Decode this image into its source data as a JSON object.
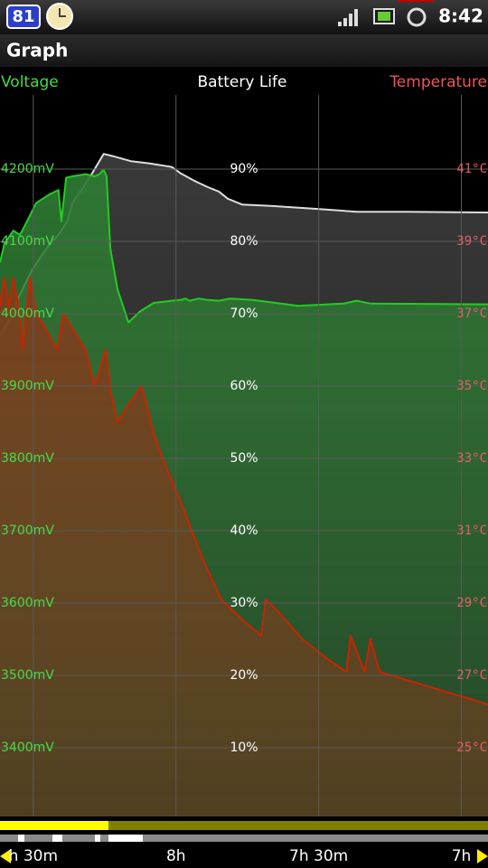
{
  "status_bar": {
    "battery_badge": "81",
    "time": "8:42"
  },
  "title_bar": {
    "title": "Graph"
  },
  "legend": {
    "left": "Voltage",
    "center": "Battery Life",
    "right": "Temperature"
  },
  "chart_data": {
    "type": "area",
    "xlim": [
      517,
      414.4
    ],
    "xticks": [
      {
        "value": 510,
        "label": "h 30m"
      },
      {
        "value": 480,
        "label": "8h"
      },
      {
        "value": 450,
        "label": "7h 30m"
      },
      {
        "value": 420,
        "label": "7h"
      }
    ],
    "ylim": [
      3305,
      4302.5
    ],
    "yticks": [
      {
        "value": 4200,
        "label": "4200mV"
      },
      {
        "value": 4100,
        "label": "4100mV"
      },
      {
        "value": 4000,
        "label": "4000mV"
      },
      {
        "value": 3900,
        "label": "3900mV"
      },
      {
        "value": 3800,
        "label": "3800mV"
      },
      {
        "value": 3700,
        "label": "3700mV"
      },
      {
        "value": 3600,
        "label": "3600mV"
      },
      {
        "value": 3500,
        "label": "3500mV"
      },
      {
        "value": 3400,
        "label": "3400mV"
      }
    ],
    "y2lim": [
      0.5,
      100.25
    ],
    "y2ticks": [
      {
        "value": 90,
        "label": "90%"
      },
      {
        "value": 80,
        "label": "80%"
      },
      {
        "value": 70,
        "label": "70%"
      },
      {
        "value": 60,
        "label": "60%"
      },
      {
        "value": 50,
        "label": "50%"
      },
      {
        "value": 40,
        "label": "40%"
      },
      {
        "value": 30,
        "label": "30%"
      },
      {
        "value": 20,
        "label": "20%"
      },
      {
        "value": 10,
        "label": "10%"
      }
    ],
    "y3lim": [
      23.1,
      43.05
    ],
    "y3ticks": [
      {
        "value": 41,
        "label": "41°C"
      },
      {
        "value": 39,
        "label": "39°C"
      },
      {
        "value": 37,
        "label": "37°C"
      },
      {
        "value": 35,
        "label": "35°C"
      },
      {
        "value": 33,
        "label": "33°C"
      },
      {
        "value": 31,
        "label": "31°C"
      },
      {
        "value": 29,
        "label": "29°C"
      },
      {
        "value": 27,
        "label": "27°C"
      },
      {
        "value": 25,
        "label": "25°C"
      }
    ],
    "grid": true,
    "series": [
      {
        "name": "Battery Life",
        "axis": "y2",
        "color": "#dddddd",
        "fill": "#3c3c3c",
        "x": [
          517.0,
          515.1,
          513.2,
          510.4,
          508.5,
          506.6,
          504.7,
          502.8,
          501.8,
          499.9,
          498.0,
          495.2,
          493.3,
          489.5,
          485.7,
          480.9,
          479.0,
          476.2,
          473.3,
          471.0,
          469.1,
          466.1,
          460.0,
          450.5,
          442.0,
          431.5,
          414.4
        ],
        "values": [
          67.1,
          69.0,
          72.1,
          75.9,
          77.8,
          79.6,
          80.9,
          82.8,
          85.3,
          87.1,
          89.0,
          92.1,
          91.8,
          91.1,
          90.8,
          90.3,
          89.4,
          88.4,
          87.5,
          86.9,
          85.9,
          85.1,
          84.9,
          84.5,
          84.1,
          84.1,
          84.0
        ]
      },
      {
        "name": "Voltage",
        "axis": "y",
        "color": "#22cc22",
        "fill": "#2e7a33",
        "x": [
          517.0,
          516.1,
          514.2,
          512.8,
          511.3,
          509.4,
          506.6,
          504.7,
          504.1,
          503.1,
          501.8,
          499.0,
          497.1,
          496.1,
          495.2,
          494.6,
          493.8,
          492.3,
          490.0,
          487.6,
          484.7,
          480.9,
          479.0,
          478.1,
          477.1,
          475.2,
          473.3,
          471.0,
          468.6,
          463.8,
          454.3,
          444.8,
          442.0,
          439.1,
          414.4
        ],
        "values": [
          4071,
          4096,
          4115,
          4109,
          4128,
          4153,
          4165,
          4171,
          4128,
          4188,
          4190,
          4193,
          4190,
          4193,
          4199,
          4190,
          4090,
          4034,
          3988,
          4003,
          4015,
          4018,
          4019,
          4021,
          4018,
          4021,
          4019,
          4018,
          4021,
          4019,
          4011,
          4014,
          4018,
          4014,
          4013
        ]
      },
      {
        "name": "Temperature",
        "axis": "y3",
        "color": "#cc2200",
        "fill": "#853a1c",
        "x": [
          517.0,
          516.1,
          515.1,
          514.2,
          512.8,
          512.3,
          510.7,
          509.4,
          507.9,
          505.0,
          503.7,
          500.9,
          499.0,
          497.1,
          496.1,
          494.8,
          493.8,
          492.3,
          490.4,
          487.2,
          484.7,
          482.8,
          479.0,
          474.3,
          470.5,
          465.7,
          462.1,
          461.1,
          458.1,
          453.4,
          448.6,
          444.2,
          443.3,
          440.4,
          439.1,
          437.2,
          414.4
        ],
        "values": [
          37.2,
          38.0,
          37.2,
          38.0,
          37.0,
          36.0,
          38.0,
          37.0,
          36.7,
          36.0,
          37.0,
          36.4,
          36.0,
          35.0,
          35.4,
          36.0,
          34.9,
          34.0,
          34.4,
          35.0,
          33.7,
          33.0,
          31.8,
          30.2,
          29.1,
          28.5,
          28.1,
          29.1,
          28.7,
          28.0,
          27.5,
          27.1,
          28.1,
          27.1,
          28.0,
          27.1,
          26.2
        ]
      }
    ]
  }
}
